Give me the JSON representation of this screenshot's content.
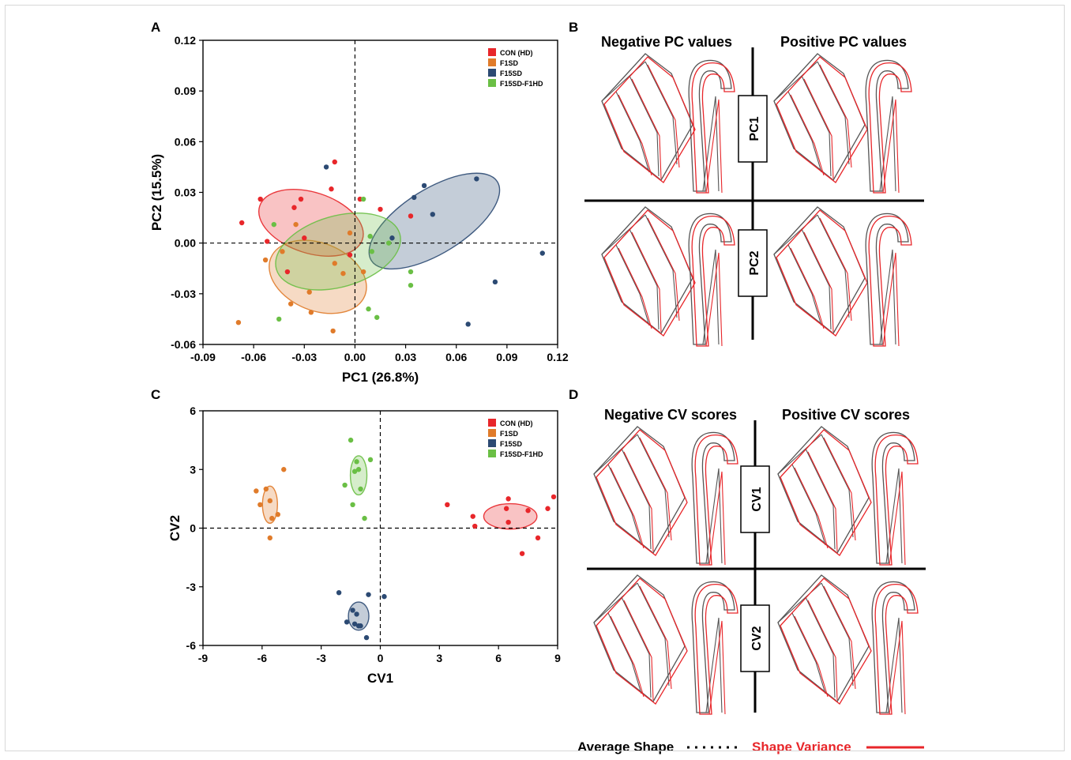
{
  "panels": {
    "A": "A",
    "B": "B",
    "C": "C",
    "D": "D"
  },
  "group_colors": {
    "CON (HD)": "#e8262a",
    "F1SD": "#e07b2a",
    "F15SD": "#2c4a73",
    "F15SD-F1HD": "#6abf45"
  },
  "panelB": {
    "negative_title": "Negative PC values",
    "positive_title": "Positive PC values",
    "box1": "PC1",
    "box2": "PC2"
  },
  "panelD": {
    "negative_title": "Negative CV scores",
    "positive_title": "Positive CV scores",
    "box1": "CV1",
    "box2": "CV2"
  },
  "footer": {
    "average_label": "Average Shape",
    "variance_label": "Shape Variance",
    "variance_color": "#e8262a"
  },
  "chart_data": [
    {
      "type": "scatter",
      "panel": "A",
      "xlabel": "PC1 (26.8%)",
      "ylabel": "PC2 (15.5%)",
      "xlim": [
        -0.09,
        0.12
      ],
      "ylim": [
        -0.06,
        0.12
      ],
      "xticks": [
        "-0.09",
        "-0.06",
        "-0.03",
        "0.00",
        "0.03",
        "0.06",
        "0.09",
        "0.12"
      ],
      "yticks": [
        "-0.06",
        "-0.03",
        "0.00",
        "0.03",
        "0.06",
        "0.09",
        "0.12"
      ],
      "legend_position": "top-right",
      "reference_lines": "dashed at x=0 and y=0",
      "series": [
        {
          "name": "CON (HD)",
          "points": [
            [
              -0.067,
              0.012
            ],
            [
              -0.056,
              0.026
            ],
            [
              -0.052,
              0.001
            ],
            [
              -0.036,
              0.021
            ],
            [
              -0.032,
              0.026
            ],
            [
              -0.012,
              0.048
            ],
            [
              -0.014,
              0.032
            ],
            [
              0.003,
              0.026
            ],
            [
              0.015,
              0.02
            ],
            [
              0.033,
              0.016
            ],
            [
              -0.04,
              -0.017
            ],
            [
              -0.003,
              -0.007
            ],
            [
              -0.03,
              0.003
            ]
          ],
          "ellipse": {
            "cx": -0.026,
            "cy": 0.012,
            "rx": 0.032,
            "ry": 0.018,
            "angle": 18
          }
        },
        {
          "name": "F1SD",
          "points": [
            [
              -0.069,
              -0.047
            ],
            [
              -0.053,
              -0.01
            ],
            [
              -0.043,
              -0.005
            ],
            [
              -0.035,
              0.011
            ],
            [
              -0.038,
              -0.036
            ],
            [
              -0.026,
              -0.041
            ],
            [
              -0.027,
              -0.029
            ],
            [
              -0.013,
              -0.052
            ],
            [
              -0.012,
              -0.012
            ],
            [
              -0.007,
              -0.018
            ],
            [
              -0.003,
              0.006
            ],
            [
              0.005,
              -0.017
            ]
          ],
          "ellipse": {
            "cx": -0.022,
            "cy": -0.02,
            "rx": 0.03,
            "ry": 0.02,
            "angle": 22
          }
        },
        {
          "name": "F15SD",
          "points": [
            [
              -0.017,
              0.045
            ],
            [
              0.022,
              0.003
            ],
            [
              0.035,
              0.027
            ],
            [
              0.041,
              0.034
            ],
            [
              0.046,
              0.017
            ],
            [
              0.072,
              0.038
            ],
            [
              0.067,
              -0.048
            ],
            [
              0.083,
              -0.023
            ],
            [
              0.111,
              -0.006
            ]
          ],
          "ellipse": {
            "cx": 0.047,
            "cy": 0.013,
            "rx": 0.044,
            "ry": 0.019,
            "angle": -32
          }
        },
        {
          "name": "F15SD-F1HD",
          "points": [
            [
              -0.048,
              0.011
            ],
            [
              -0.045,
              -0.045
            ],
            [
              0.005,
              0.026
            ],
            [
              0.009,
              0.004
            ],
            [
              0.01,
              -0.005
            ],
            [
              0.013,
              -0.044
            ],
            [
              0.008,
              -0.039
            ],
            [
              0.02,
              0.0
            ],
            [
              0.033,
              -0.017
            ],
            [
              0.033,
              -0.025
            ]
          ],
          "ellipse": {
            "cx": -0.01,
            "cy": -0.005,
            "rx": 0.038,
            "ry": 0.021,
            "angle": -16
          }
        }
      ]
    },
    {
      "type": "scatter",
      "panel": "C",
      "xlabel": "CV1",
      "ylabel": "CV2",
      "xlim": [
        -9,
        9
      ],
      "ylim": [
        -6,
        6
      ],
      "xticks": [
        "-9",
        "-6",
        "-3",
        "0",
        "3",
        "6",
        "9"
      ],
      "yticks": [
        "-6",
        "-3",
        "0",
        "3",
        "6"
      ],
      "legend_position": "top-right",
      "reference_lines": "dashed at x=0 and y=0",
      "series": [
        {
          "name": "CON (HD)",
          "points": [
            [
              3.4,
              1.2
            ],
            [
              4.7,
              0.6
            ],
            [
              4.8,
              0.1
            ],
            [
              6.4,
              1.0
            ],
            [
              6.5,
              1.5
            ],
            [
              6.5,
              0.3
            ],
            [
              7.2,
              -1.3
            ],
            [
              7.5,
              0.9
            ],
            [
              8.0,
              -0.5
            ],
            [
              8.5,
              1.0
            ],
            [
              8.8,
              1.6
            ]
          ],
          "ellipse": {
            "cx": 6.6,
            "cy": 0.6,
            "rx": 1.35,
            "ry": 0.65,
            "angle": 0
          }
        },
        {
          "name": "F1SD",
          "points": [
            [
              -6.3,
              1.9
            ],
            [
              -6.1,
              1.2
            ],
            [
              -5.8,
              2.0
            ],
            [
              -5.6,
              1.4
            ],
            [
              -5.5,
              0.5
            ],
            [
              -5.2,
              0.7
            ],
            [
              -4.9,
              3.0
            ],
            [
              -5.6,
              -0.5
            ]
          ],
          "ellipse": {
            "cx": -5.6,
            "cy": 1.2,
            "rx": 0.38,
            "ry": 0.95,
            "angle": 0
          }
        },
        {
          "name": "F15SD",
          "points": [
            [
              -2.1,
              -3.3
            ],
            [
              -1.7,
              -4.8
            ],
            [
              -1.4,
              -4.2
            ],
            [
              -1.3,
              -4.9
            ],
            [
              -1.2,
              -4.4
            ],
            [
              -1.1,
              -5.0
            ],
            [
              -1.0,
              -5.0
            ],
            [
              -0.7,
              -5.6
            ],
            [
              -0.6,
              -3.4
            ],
            [
              0.2,
              -3.5
            ]
          ],
          "ellipse": {
            "cx": -1.1,
            "cy": -4.5,
            "rx": 0.52,
            "ry": 0.72,
            "angle": 0
          }
        },
        {
          "name": "F15SD-F1HD",
          "points": [
            [
              -1.8,
              2.2
            ],
            [
              -1.5,
              4.5
            ],
            [
              -1.4,
              1.2
            ],
            [
              -1.3,
              2.9
            ],
            [
              -1.2,
              3.4
            ],
            [
              -1.1,
              3.0
            ],
            [
              -1.0,
              2.0
            ],
            [
              -0.8,
              0.5
            ],
            [
              -0.5,
              3.5
            ]
          ],
          "ellipse": {
            "cx": -1.1,
            "cy": 2.7,
            "rx": 0.42,
            "ry": 1.0,
            "angle": 0
          }
        }
      ]
    }
  ]
}
